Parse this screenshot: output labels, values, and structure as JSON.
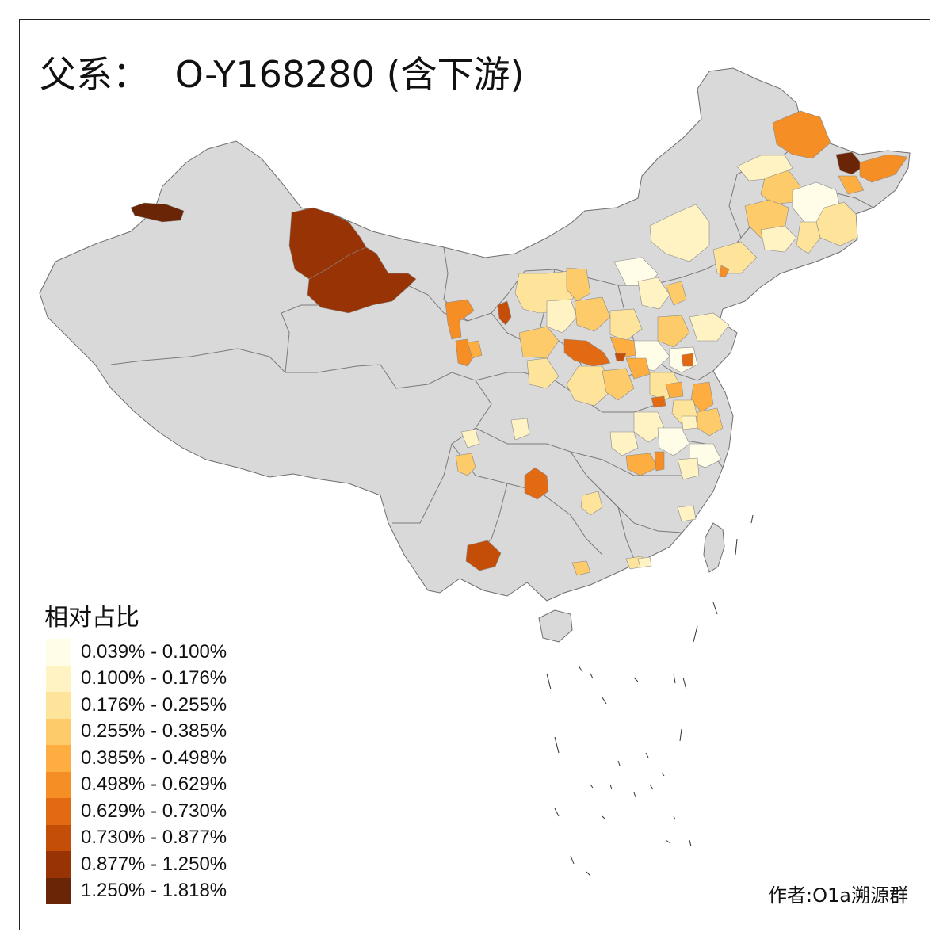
{
  "title": {
    "label": "父系：",
    "haplogroup": "O-Y168280 (含下游)"
  },
  "legend": {
    "title": "相对占比",
    "bins": [
      {
        "label": "0.039% - 0.100%",
        "color": "#fffde8"
      },
      {
        "label": "0.100% - 0.176%",
        "color": "#fff3c4"
      },
      {
        "label": "0.176% - 0.255%",
        "color": "#fee49a"
      },
      {
        "label": "0.255% - 0.385%",
        "color": "#fecb6a"
      },
      {
        "label": "0.385% - 0.498%",
        "color": "#feae40"
      },
      {
        "label": "0.498% - 0.629%",
        "color": "#f68e26"
      },
      {
        "label": "0.629% - 0.730%",
        "color": "#e26a12"
      },
      {
        "label": "0.730% - 0.877%",
        "color": "#c44d08"
      },
      {
        "label": "0.877% - 1.250%",
        "color": "#983306"
      },
      {
        "label": "1.250% - 1.818%",
        "color": "#6a2406"
      }
    ]
  },
  "credit": "作者:O1a溯源群",
  "map_colors": {
    "base": "#d9d9d9",
    "border": "#6e6e6e",
    "island_outline": "#333333"
  }
}
